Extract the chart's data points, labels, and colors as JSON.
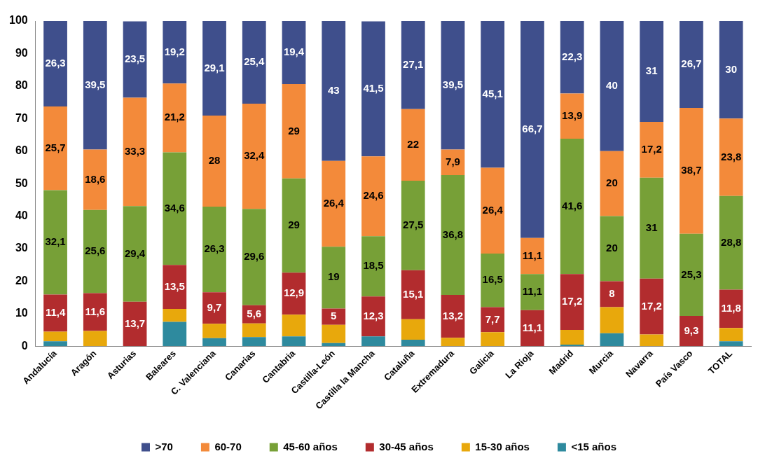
{
  "chart_data": {
    "type": "bar",
    "stacked": true,
    "categories": [
      "Andalucía",
      "Aragón",
      "Asturias",
      "Baleares",
      "C. Valenciana",
      "Canarias",
      "Cantabria",
      "Castilla-León",
      "Castilla la Mancha",
      "Cataluña",
      "Extremadura",
      "Galicia",
      "La Rioja",
      "Madrid",
      "Murcia",
      "Navarra",
      "País Vasco",
      "TOTAL"
    ],
    "ylim": [
      0,
      100
    ],
    "yticks": [
      0,
      10,
      20,
      30,
      40,
      50,
      60,
      70,
      80,
      90,
      100
    ],
    "grid": false,
    "legend": "bottom",
    "series": [
      {
        "name": "<15 años",
        "color": "#2e8a9e",
        "values": [
          1.5,
          0,
          0,
          7.5,
          2.5,
          2.8,
          3,
          1,
          3,
          2,
          0,
          0,
          0,
          0.5,
          4,
          0,
          0,
          1.5
        ]
      },
      {
        "name": "15-30 años",
        "color": "#e8a80c",
        "values": [
          3,
          4.7,
          0,
          4,
          4.4,
          4.2,
          6.7,
          5.6,
          0,
          6.3,
          2.6,
          4.3,
          0,
          4.5,
          8,
          3.6,
          0,
          4.1
        ]
      },
      {
        "name": "30-45 años",
        "color": "#b22c2e",
        "values": [
          11.4,
          11.6,
          13.7,
          13.5,
          9.7,
          5.6,
          12.9,
          5,
          12.3,
          15.1,
          13.2,
          7.7,
          11.1,
          17.2,
          8,
          17.2,
          9.3,
          11.8
        ],
        "value_labels": [
          "11,4",
          "11,6",
          "13,7",
          "13,5",
          "9,7",
          "5,6",
          "12,9",
          "5",
          "12,3",
          "15,1",
          "13,2",
          "7,7",
          "11,1",
          "17,2",
          "8",
          "17,2",
          "9,3",
          "11,8"
        ]
      },
      {
        "name": "45-60 años",
        "color": "#77a037",
        "values": [
          32.1,
          25.6,
          29.4,
          34.6,
          26.3,
          29.6,
          29,
          19,
          18.5,
          27.5,
          36.8,
          16.5,
          11.1,
          41.6,
          20,
          31,
          25.3,
          28.8
        ],
        "value_labels": [
          "32,1",
          "25,6",
          "29,4",
          "34,6",
          "26,3",
          "29,6",
          "29",
          "19",
          "18,5",
          "27,5",
          "36,8",
          "16,5",
          "11,1",
          "41,6",
          "20",
          "31",
          "25,3",
          "28,8"
        ]
      },
      {
        "name": "60-70",
        "color": "#f38a3a",
        "values": [
          25.7,
          18.6,
          33.3,
          21.2,
          28,
          32.4,
          29,
          26.4,
          24.6,
          22,
          7.9,
          26.4,
          11.1,
          13.9,
          20,
          17.2,
          38.7,
          23.8
        ],
        "value_labels": [
          "25,7",
          "18,6",
          "33,3",
          "21,2",
          "28",
          "32,4",
          "29",
          "26,4",
          "24,6",
          "22",
          "7,9",
          "26,4",
          "11,1",
          "13,9",
          "20",
          "17,2",
          "38,7",
          "23,8"
        ]
      },
      {
        "name": ">70",
        "color": "#3f4f8c",
        "values": [
          26.3,
          39.5,
          23.5,
          19.2,
          29.1,
          25.4,
          19.4,
          43,
          41.5,
          27.1,
          39.5,
          45.1,
          66.7,
          22.3,
          40,
          31,
          26.7,
          30
        ],
        "value_labels": [
          "26,3",
          "39,5",
          "23,5",
          "19,2",
          "29,1",
          "25,4",
          "19,4",
          "43",
          "41,5",
          "27,1",
          "39,5",
          "45,1",
          "66,7",
          "22,3",
          "40",
          "31",
          "26,7",
          "30"
        ]
      }
    ]
  }
}
